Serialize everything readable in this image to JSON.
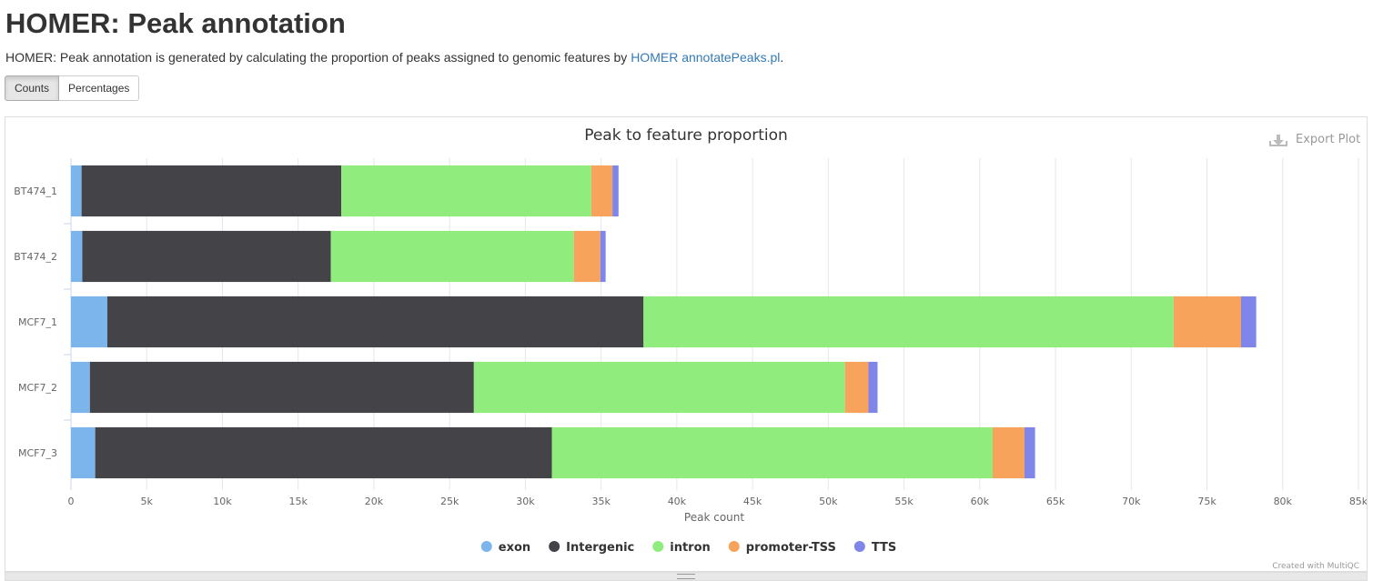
{
  "header": {
    "title": "HOMER: Peak annotation",
    "description_prefix": "HOMER: Peak annotation is generated by calculating the proportion of peaks assigned to genomic features by ",
    "description_link": "HOMER annotatePeaks.pl",
    "description_suffix": "."
  },
  "toggle": {
    "counts_label": "Counts",
    "percentages_label": "Percentages",
    "active": "Counts"
  },
  "plot": {
    "export_label": "Export Plot",
    "credit": "Created with MultiQC"
  },
  "chart_data": {
    "type": "bar",
    "orientation": "horizontal",
    "stacked": true,
    "title": "Peak to feature proportion",
    "xlabel": "Peak count",
    "ylabel": "",
    "xlim": [
      0,
      85000
    ],
    "x_ticks": [
      "0",
      "5k",
      "10k",
      "15k",
      "20k",
      "25k",
      "30k",
      "35k",
      "40k",
      "45k",
      "50k",
      "55k",
      "60k",
      "65k",
      "70k",
      "75k",
      "80k",
      "85k"
    ],
    "grid": true,
    "legend_position": "bottom",
    "categories": [
      "BT474_1",
      "BT474_2",
      "MCF7_1",
      "MCF7_2",
      "MCF7_3"
    ],
    "series": [
      {
        "name": "exon",
        "color": "#7cb5ec",
        "values": [
          700,
          750,
          2400,
          1250,
          1600
        ]
      },
      {
        "name": "Intergenic",
        "color": "#434348",
        "values": [
          17150,
          16400,
          35400,
          25350,
          30150
        ]
      },
      {
        "name": "intron",
        "color": "#90ed7d",
        "values": [
          16500,
          16050,
          35000,
          24500,
          29100
        ]
      },
      {
        "name": "promoter-TSS",
        "color": "#f7a35c",
        "values": [
          1400,
          1750,
          4450,
          1550,
          2100
        ]
      },
      {
        "name": "TTS",
        "color": "#8085e9",
        "values": [
          400,
          350,
          1000,
          600,
          700
        ]
      }
    ]
  }
}
